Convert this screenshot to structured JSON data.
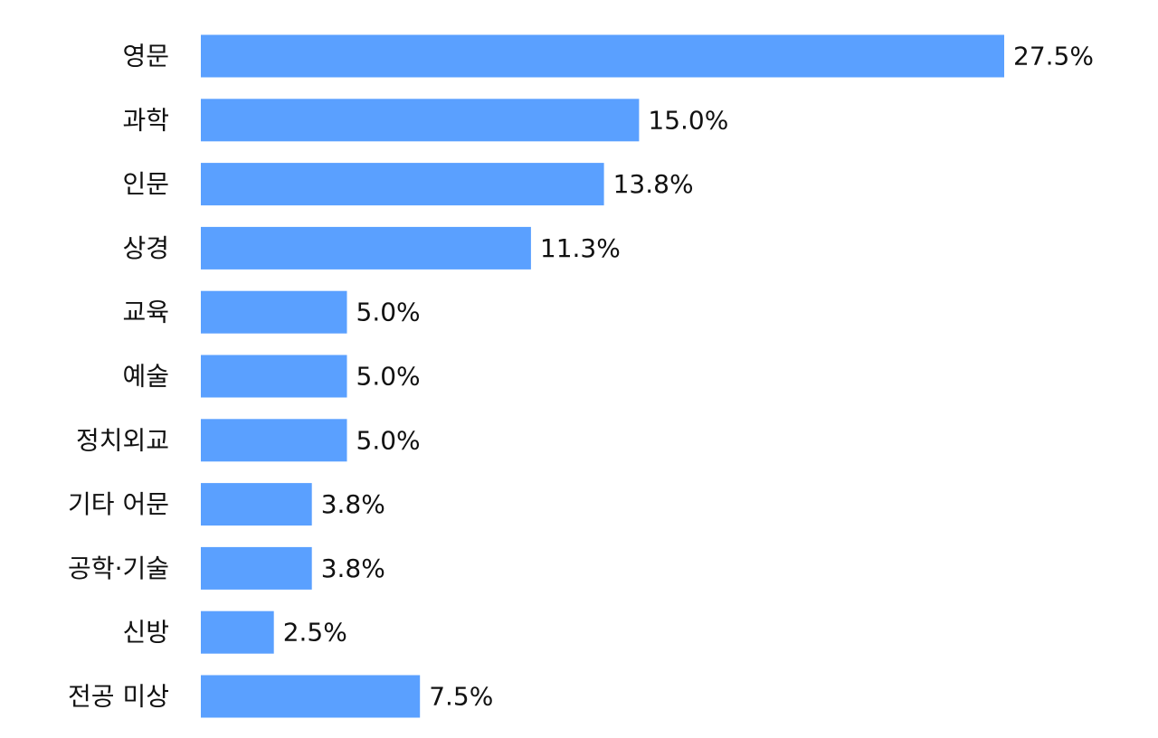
{
  "chart_data": {
    "type": "bar",
    "orientation": "horizontal",
    "title": "",
    "xlabel": "",
    "ylabel": "",
    "grid": false,
    "legend": "none",
    "bar_color": "#5aa0ff",
    "value_suffix": "%",
    "categories": [
      "영문",
      "과학",
      "인문",
      "상경",
      "교육",
      "예술",
      "정치외교",
      "기타 어문",
      "공학·기술",
      "신방",
      "전공 미상"
    ],
    "values": [
      27.5,
      15.0,
      13.8,
      11.3,
      5.0,
      5.0,
      5.0,
      3.8,
      3.8,
      2.5,
      7.5
    ],
    "value_labels": [
      "27.5%",
      "15.0%",
      "13.8%",
      "11.3%",
      "5.0%",
      "5.0%",
      "5.0%",
      "3.8%",
      "3.8%",
      "2.5%",
      "7.5%"
    ],
    "xlim": [
      0,
      27.5
    ]
  }
}
